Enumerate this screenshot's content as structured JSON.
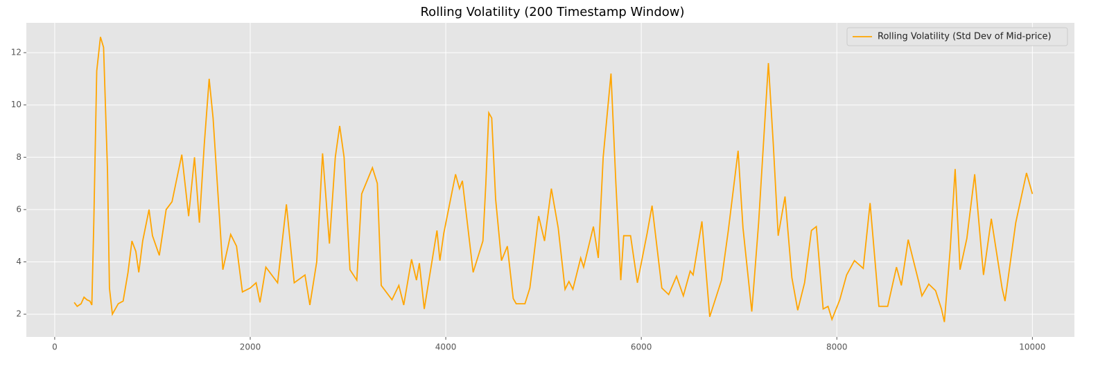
{
  "chart_data": {
    "type": "line",
    "title": "Rolling Volatility (200 Timestamp Window)",
    "x": [
      200,
      230,
      270,
      300,
      330,
      360,
      380,
      400,
      430,
      468,
      500,
      540,
      560,
      590,
      650,
      700,
      750,
      790,
      830,
      860,
      900,
      965,
      1000,
      1070,
      1140,
      1200,
      1300,
      1370,
      1430,
      1480,
      1530,
      1580,
      1620,
      1720,
      1800,
      1860,
      1920,
      2000,
      2060,
      2100,
      2160,
      2280,
      2370,
      2450,
      2560,
      2610,
      2680,
      2740,
      2810,
      2870,
      2915,
      2960,
      3020,
      3090,
      3140,
      3250,
      3300,
      3340,
      3450,
      3520,
      3570,
      3650,
      3700,
      3730,
      3780,
      3910,
      3940,
      3980,
      4100,
      4140,
      4170,
      4280,
      4380,
      4410,
      4440,
      4470,
      4510,
      4570,
      4630,
      4690,
      4720,
      4810,
      4860,
      4900,
      4950,
      5010,
      5080,
      5150,
      5220,
      5260,
      5300,
      5380,
      5410,
      5510,
      5560,
      5610,
      5690,
      5740,
      5790,
      5820,
      5890,
      5960,
      6060,
      6110,
      6210,
      6280,
      6360,
      6430,
      6500,
      6530,
      6620,
      6700,
      6820,
      6890,
      6990,
      7040,
      7130,
      7200,
      7300,
      7350,
      7400,
      7470,
      7540,
      7600,
      7670,
      7740,
      7790,
      7860,
      7910,
      7950,
      8030,
      8100,
      8180,
      8270,
      8340,
      8430,
      8520,
      8610,
      8660,
      8730,
      8840,
      8870,
      8940,
      9010,
      9070,
      9100,
      9160,
      9210,
      9260,
      9330,
      9410,
      9500,
      9580,
      9690,
      9720,
      9830,
      9940,
      10000
    ],
    "series": [
      {
        "name": "Rolling Volatility (Std Dev of Mid-price)",
        "color": "#ffa500",
        "values": [
          2.45,
          2.3,
          2.4,
          2.65,
          2.55,
          2.5,
          2.35,
          5.5,
          11.3,
          12.6,
          12.2,
          7.5,
          3.0,
          2.0,
          2.4,
          2.5,
          3.6,
          4.8,
          4.4,
          3.6,
          4.8,
          6.0,
          5.0,
          4.25,
          6.0,
          6.3,
          8.1,
          5.75,
          8.0,
          5.5,
          8.5,
          11.0,
          9.5,
          3.7,
          5.05,
          4.6,
          2.85,
          3.0,
          3.2,
          2.45,
          3.8,
          3.2,
          6.2,
          3.2,
          3.5,
          2.35,
          4.0,
          8.15,
          4.7,
          8.0,
          9.2,
          8.0,
          3.7,
          3.3,
          6.6,
          7.6,
          7.0,
          3.1,
          2.55,
          3.1,
          2.35,
          4.1,
          3.3,
          3.95,
          2.2,
          5.2,
          4.05,
          5.1,
          7.35,
          6.8,
          7.1,
          3.6,
          4.8,
          7.0,
          9.7,
          9.5,
          6.4,
          4.05,
          4.6,
          2.6,
          2.4,
          2.4,
          3.0,
          4.2,
          5.75,
          4.8,
          6.8,
          5.3,
          2.95,
          3.25,
          2.95,
          4.15,
          3.8,
          5.35,
          4.15,
          8.0,
          11.2,
          7.0,
          3.3,
          5.0,
          5.0,
          3.2,
          5.1,
          6.15,
          3.0,
          2.75,
          3.45,
          2.7,
          3.65,
          3.5,
          5.55,
          1.9,
          3.3,
          5.2,
          8.25,
          5.3,
          2.1,
          5.5,
          11.6,
          8.5,
          5.0,
          6.5,
          3.4,
          2.15,
          3.2,
          5.2,
          5.35,
          2.2,
          2.3,
          1.8,
          2.55,
          3.5,
          4.05,
          3.75,
          6.25,
          2.3,
          2.3,
          3.8,
          3.1,
          4.85,
          3.2,
          2.7,
          3.15,
          2.9,
          2.2,
          1.7,
          4.5,
          7.55,
          3.7,
          4.9,
          7.35,
          3.5,
          5.65,
          3.0,
          2.5,
          5.5,
          7.4,
          6.6
        ]
      }
    ],
    "xlim": [
      -290,
      10430
    ],
    "ylim": [
      1.13,
      13.14
    ],
    "xticks": [
      0,
      2000,
      4000,
      6000,
      8000,
      10000
    ],
    "yticks": [
      2,
      4,
      6,
      8,
      10,
      12
    ],
    "grid": true,
    "legend": "upper right"
  }
}
